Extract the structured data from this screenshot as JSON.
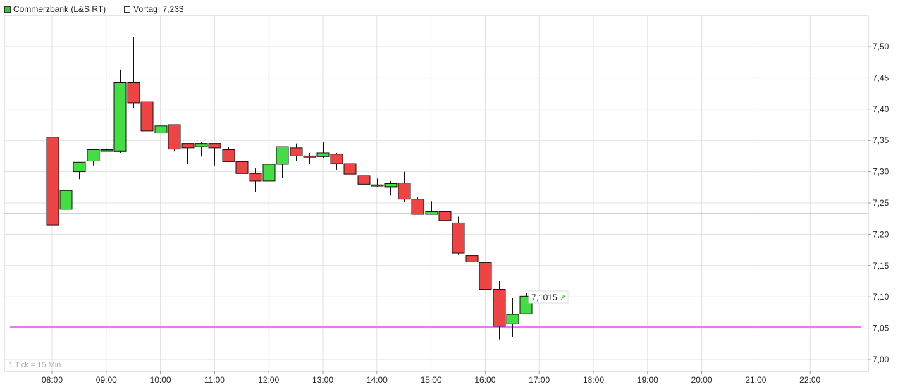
{
  "legend": {
    "series_label": "Commerzbank (L&S RT)",
    "series_color": "#33cc33",
    "reference_label": "Vortag: 7,233",
    "reference_color": "#ffffff"
  },
  "footnote": "1 Tick = 15 Min.",
  "last_price_label": "7,1015",
  "last_price_arrow": "↗",
  "colors": {
    "up": "#44dd44",
    "down": "#ee4444",
    "support_line": "#ee77ee",
    "reference_line": "#888888",
    "grid": "#e0e0e0"
  },
  "chart_data": {
    "type": "candlestick",
    "interval_minutes": 15,
    "ylim": [
      6.99,
      7.53
    ],
    "y_ticks": [
      "7,50",
      "7,45",
      "7,40",
      "7,35",
      "7,30",
      "7,25",
      "7,20",
      "7,15",
      "7,10",
      "7,05",
      "7,00"
    ],
    "y_tick_values": [
      7.5,
      7.45,
      7.4,
      7.35,
      7.3,
      7.25,
      7.2,
      7.15,
      7.1,
      7.05,
      7.0
    ],
    "x_ticks": [
      "08:00",
      "09:00",
      "10:00",
      "11:00",
      "12:00",
      "13:00",
      "14:00",
      "15:00",
      "16:00",
      "17:00",
      "18:00",
      "19:00",
      "20:00",
      "21:00",
      "22:00"
    ],
    "x_range_hours": [
      7.5,
      22.5
    ],
    "reference_price": 7.233,
    "support_price": 7.052,
    "last_price": 7.1015,
    "candles": [
      {
        "t": "08:00",
        "o": 7.355,
        "h": 7.355,
        "l": 7.215,
        "c": 7.215
      },
      {
        "t": "08:15",
        "o": 7.24,
        "h": 7.27,
        "l": 7.24,
        "c": 7.27
      },
      {
        "t": "08:30",
        "o": 7.3,
        "h": 7.315,
        "l": 7.288,
        "c": 7.315
      },
      {
        "t": "08:45",
        "o": 7.317,
        "h": 7.335,
        "l": 7.31,
        "c": 7.335
      },
      {
        "t": "09:00",
        "o": 7.335,
        "h": 7.337,
        "l": 7.333,
        "c": 7.335
      },
      {
        "t": "09:15",
        "o": 7.333,
        "h": 7.463,
        "l": 7.33,
        "c": 7.442
      },
      {
        "t": "09:30",
        "o": 7.442,
        "h": 7.515,
        "l": 7.402,
        "c": 7.41
      },
      {
        "t": "09:45",
        "o": 7.412,
        "h": 7.412,
        "l": 7.357,
        "c": 7.365
      },
      {
        "t": "10:00",
        "o": 7.362,
        "h": 7.402,
        "l": 7.36,
        "c": 7.373
      },
      {
        "t": "10:15",
        "o": 7.375,
        "h": 7.375,
        "l": 7.333,
        "c": 7.336
      },
      {
        "t": "10:30",
        "o": 7.345,
        "h": 7.345,
        "l": 7.313,
        "c": 7.338
      },
      {
        "t": "10:45",
        "o": 7.34,
        "h": 7.348,
        "l": 7.324,
        "c": 7.345
      },
      {
        "t": "11:00",
        "o": 7.345,
        "h": 7.345,
        "l": 7.31,
        "c": 7.338
      },
      {
        "t": "11:15",
        "o": 7.335,
        "h": 7.34,
        "l": 7.316,
        "c": 7.316
      },
      {
        "t": "11:30",
        "o": 7.316,
        "h": 7.333,
        "l": 7.295,
        "c": 7.297
      },
      {
        "t": "11:45",
        "o": 7.297,
        "h": 7.305,
        "l": 7.268,
        "c": 7.285
      },
      {
        "t": "12:00",
        "o": 7.285,
        "h": 7.312,
        "l": 7.273,
        "c": 7.312
      },
      {
        "t": "12:15",
        "o": 7.312,
        "h": 7.34,
        "l": 7.29,
        "c": 7.34
      },
      {
        "t": "12:30",
        "o": 7.338,
        "h": 7.345,
        "l": 7.317,
        "c": 7.325
      },
      {
        "t": "12:45",
        "o": 7.325,
        "h": 7.33,
        "l": 7.313,
        "c": 7.323
      },
      {
        "t": "13:00",
        "o": 7.324,
        "h": 7.348,
        "l": 7.322,
        "c": 7.33
      },
      {
        "t": "13:15",
        "o": 7.328,
        "h": 7.33,
        "l": 7.303,
        "c": 7.313
      },
      {
        "t": "13:30",
        "o": 7.313,
        "h": 7.313,
        "l": 7.29,
        "c": 7.296
      },
      {
        "t": "13:45",
        "o": 7.294,
        "h": 7.294,
        "l": 7.275,
        "c": 7.28
      },
      {
        "t": "14:00",
        "o": 7.279,
        "h": 7.289,
        "l": 7.276,
        "c": 7.277
      },
      {
        "t": "14:15",
        "o": 7.276,
        "h": 7.285,
        "l": 7.262,
        "c": 7.281
      },
      {
        "t": "14:30",
        "o": 7.282,
        "h": 7.3,
        "l": 7.252,
        "c": 7.256
      },
      {
        "t": "14:45",
        "o": 7.256,
        "h": 7.26,
        "l": 7.232,
        "c": 7.232
      },
      {
        "t": "15:00",
        "o": 7.232,
        "h": 7.253,
        "l": 7.232,
        "c": 7.236
      },
      {
        "t": "15:15",
        "o": 7.236,
        "h": 7.24,
        "l": 7.206,
        "c": 7.222
      },
      {
        "t": "15:30",
        "o": 7.218,
        "h": 7.228,
        "l": 7.167,
        "c": 7.17
      },
      {
        "t": "15:45",
        "o": 7.166,
        "h": 7.203,
        "l": 7.155,
        "c": 7.156
      },
      {
        "t": "16:00",
        "o": 7.155,
        "h": 7.155,
        "l": 7.112,
        "c": 7.112
      },
      {
        "t": "16:15",
        "o": 7.112,
        "h": 7.125,
        "l": 7.032,
        "c": 7.053
      },
      {
        "t": "16:30",
        "o": 7.057,
        "h": 7.098,
        "l": 7.036,
        "c": 7.072
      },
      {
        "t": "16:45",
        "o": 7.073,
        "h": 7.107,
        "l": 7.073,
        "c": 7.101
      }
    ]
  }
}
